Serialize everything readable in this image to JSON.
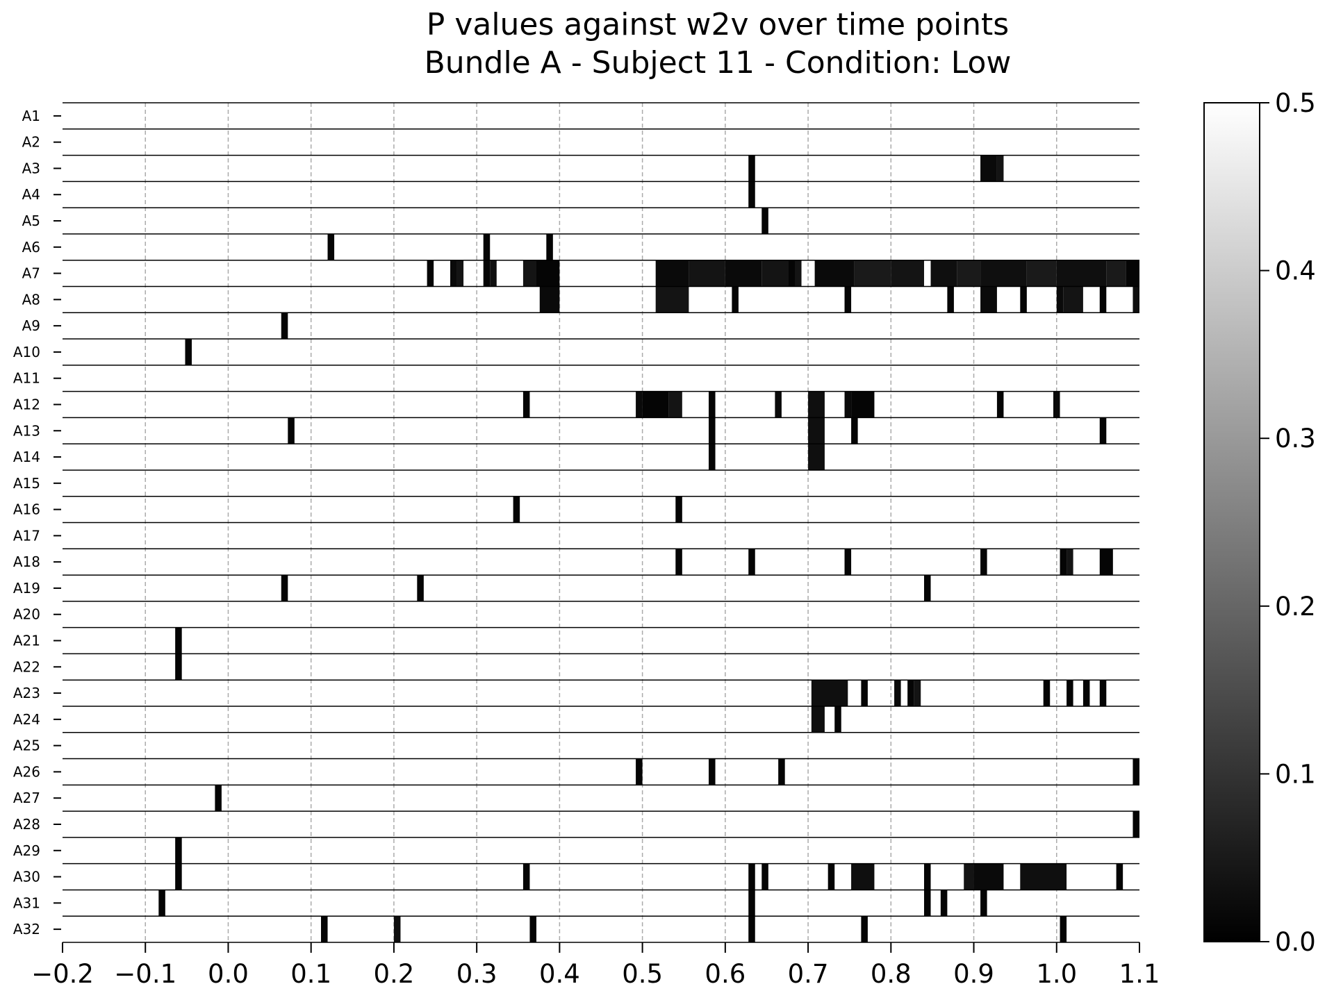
{
  "chart_data": {
    "type": "heatmap",
    "title": [
      "P values against w2v over time points",
      "Bundle A - Subject 11 - Condition: Low"
    ],
    "xlabel": "",
    "ylabel": "",
    "xlim": [
      -0.2,
      1.1
    ],
    "xticks": [
      -0.2,
      -0.1,
      0.0,
      0.1,
      0.2,
      0.3,
      0.4,
      0.5,
      0.6,
      0.7,
      0.8,
      0.9,
      1.0,
      1.1
    ],
    "xtick_labels": [
      "−0.2",
      "−0.1",
      "0.0",
      "0.1",
      "0.2",
      "0.3",
      "0.4",
      "0.5",
      "0.6",
      "0.7",
      "0.8",
      "0.9",
      "1.0",
      "1.1"
    ],
    "rows": [
      "A1",
      "A2",
      "A3",
      "A4",
      "A5",
      "A6",
      "A7",
      "A8",
      "A9",
      "A10",
      "A11",
      "A12",
      "A13",
      "A14",
      "A15",
      "A16",
      "A17",
      "A18",
      "A19",
      "A20",
      "A21",
      "A22",
      "A23",
      "A24",
      "A25",
      "A26",
      "A27",
      "A28",
      "A29",
      "A30",
      "A31",
      "A32"
    ],
    "colormap": "gray",
    "colorbar": {
      "min": 0.0,
      "max": 0.5,
      "ticks": [
        0.0,
        0.1,
        0.2,
        0.3,
        0.4,
        0.5
      ],
      "tick_labels": [
        "0.0",
        "0.1",
        "0.2",
        "0.3",
        "0.4",
        "0.5"
      ]
    },
    "grid": {
      "x": true,
      "style": "dashed",
      "color": "#aaaaaa"
    },
    "significant_segments": [
      {
        "row": "A3",
        "segments": [
          [
            0.628,
            0.636,
            0.01
          ],
          [
            0.908,
            0.928,
            0.02
          ],
          [
            0.928,
            0.936,
            0.04
          ]
        ]
      },
      {
        "row": "A4",
        "segments": [
          [
            0.628,
            0.636,
            0.01
          ]
        ]
      },
      {
        "row": "A5",
        "segments": [
          [
            0.644,
            0.652,
            0.01
          ]
        ]
      },
      {
        "row": "A6",
        "segments": [
          [
            0.12,
            0.128,
            0.01
          ],
          [
            0.308,
            0.316,
            0.01
          ],
          [
            0.384,
            0.392,
            0.01
          ]
        ]
      },
      {
        "row": "A7",
        "segments": [
          [
            0.24,
            0.248,
            0.01
          ],
          [
            0.268,
            0.276,
            0.02
          ],
          [
            0.276,
            0.284,
            0.04
          ],
          [
            0.308,
            0.316,
            0.01
          ],
          [
            0.316,
            0.324,
            0.03
          ],
          [
            0.356,
            0.372,
            0.04
          ],
          [
            0.372,
            0.4,
            0.01
          ],
          [
            0.516,
            0.556,
            0.02
          ],
          [
            0.556,
            0.6,
            0.04
          ],
          [
            0.6,
            0.644,
            0.02
          ],
          [
            0.644,
            0.676,
            0.04
          ],
          [
            0.676,
            0.684,
            0.01
          ],
          [
            0.684,
            0.692,
            0.04
          ],
          [
            0.708,
            0.756,
            0.02
          ],
          [
            0.756,
            0.8,
            0.05
          ],
          [
            0.8,
            0.84,
            0.04
          ],
          [
            0.848,
            0.88,
            0.03
          ],
          [
            0.88,
            0.908,
            0.05
          ],
          [
            0.908,
            0.964,
            0.03
          ],
          [
            0.964,
            1.0,
            0.05
          ],
          [
            1.0,
            1.06,
            0.03
          ],
          [
            1.06,
            1.084,
            0.05
          ],
          [
            1.084,
            1.1,
            0.01
          ]
        ]
      },
      {
        "row": "A8",
        "segments": [
          [
            0.376,
            0.4,
            0.02
          ],
          [
            0.516,
            0.556,
            0.04
          ],
          [
            0.608,
            0.616,
            0.01
          ],
          [
            0.744,
            0.752,
            0.01
          ],
          [
            0.868,
            0.876,
            0.01
          ],
          [
            0.908,
            0.928,
            0.02
          ],
          [
            0.956,
            0.964,
            0.01
          ],
          [
            1.0,
            1.008,
            0.02
          ],
          [
            1.008,
            1.032,
            0.04
          ],
          [
            1.052,
            1.06,
            0.01
          ],
          [
            1.092,
            1.1,
            0.03
          ]
        ]
      },
      {
        "row": "A9",
        "segments": [
          [
            0.064,
            0.072,
            0.01
          ]
        ]
      },
      {
        "row": "A10",
        "segments": [
          [
            -0.052,
            -0.044,
            0.01
          ]
        ]
      },
      {
        "row": "A12",
        "segments": [
          [
            0.356,
            0.364,
            0.01
          ],
          [
            0.492,
            0.5,
            0.02
          ],
          [
            0.5,
            0.532,
            0.01
          ],
          [
            0.532,
            0.548,
            0.04
          ],
          [
            0.58,
            0.588,
            0.01
          ],
          [
            0.66,
            0.668,
            0.02
          ],
          [
            0.7,
            0.72,
            0.03
          ],
          [
            0.744,
            0.752,
            0.02
          ],
          [
            0.752,
            0.78,
            0.01
          ],
          [
            0.928,
            0.936,
            0.01
          ],
          [
            0.996,
            1.004,
            0.02
          ]
        ]
      },
      {
        "row": "A13",
        "segments": [
          [
            0.072,
            0.08,
            0.01
          ],
          [
            0.58,
            0.588,
            0.01
          ],
          [
            0.7,
            0.72,
            0.03
          ],
          [
            0.752,
            0.76,
            0.01
          ],
          [
            1.052,
            1.06,
            0.01
          ]
        ]
      },
      {
        "row": "A14",
        "segments": [
          [
            0.58,
            0.588,
            0.01
          ],
          [
            0.7,
            0.72,
            0.03
          ]
        ]
      },
      {
        "row": "A16",
        "segments": [
          [
            0.344,
            0.352,
            0.01
          ],
          [
            0.54,
            0.548,
            0.01
          ]
        ]
      },
      {
        "row": "A18",
        "segments": [
          [
            0.54,
            0.548,
            0.01
          ],
          [
            0.628,
            0.636,
            0.01
          ],
          [
            0.744,
            0.752,
            0.01
          ],
          [
            0.908,
            0.916,
            0.01
          ],
          [
            1.004,
            1.012,
            0.01
          ],
          [
            1.012,
            1.02,
            0.04
          ],
          [
            1.052,
            1.068,
            0.01
          ]
        ]
      },
      {
        "row": "A19",
        "segments": [
          [
            0.064,
            0.072,
            0.01
          ],
          [
            0.228,
            0.236,
            0.01
          ],
          [
            0.84,
            0.848,
            0.01
          ]
        ]
      },
      {
        "row": "A21",
        "segments": [
          [
            -0.064,
            -0.056,
            0.01
          ]
        ]
      },
      {
        "row": "A22",
        "segments": [
          [
            -0.064,
            -0.056,
            0.01
          ]
        ]
      },
      {
        "row": "A23",
        "segments": [
          [
            0.704,
            0.748,
            0.03
          ],
          [
            0.764,
            0.772,
            0.01
          ],
          [
            0.804,
            0.812,
            0.02
          ],
          [
            0.82,
            0.828,
            0.01
          ],
          [
            0.828,
            0.836,
            0.04
          ],
          [
            0.984,
            0.992,
            0.01
          ],
          [
            1.012,
            1.02,
            0.01
          ],
          [
            1.032,
            1.04,
            0.01
          ],
          [
            1.052,
            1.06,
            0.01
          ]
        ]
      },
      {
        "row": "A24",
        "segments": [
          [
            0.704,
            0.72,
            0.03
          ],
          [
            0.732,
            0.74,
            0.01
          ]
        ]
      },
      {
        "row": "A26",
        "segments": [
          [
            0.492,
            0.5,
            0.01
          ],
          [
            0.58,
            0.588,
            0.01
          ],
          [
            0.664,
            0.672,
            0.01
          ],
          [
            1.092,
            1.1,
            0.01
          ]
        ]
      },
      {
        "row": "A27",
        "segments": [
          [
            -0.016,
            -0.008,
            0.01
          ]
        ]
      },
      {
        "row": "A28",
        "segments": [
          [
            1.092,
            1.1,
            0.01
          ]
        ]
      },
      {
        "row": "A29",
        "segments": [
          [
            -0.064,
            -0.056,
            0.01
          ]
        ]
      },
      {
        "row": "A30",
        "segments": [
          [
            -0.064,
            -0.056,
            0.01
          ],
          [
            0.356,
            0.364,
            0.01
          ],
          [
            0.628,
            0.636,
            0.01
          ],
          [
            0.644,
            0.652,
            0.01
          ],
          [
            0.724,
            0.732,
            0.01
          ],
          [
            0.752,
            0.78,
            0.03
          ],
          [
            0.84,
            0.848,
            0.01
          ],
          [
            0.888,
            0.9,
            0.04
          ],
          [
            0.9,
            0.936,
            0.02
          ],
          [
            0.956,
            1.012,
            0.03
          ],
          [
            1.072,
            1.08,
            0.01
          ]
        ]
      },
      {
        "row": "A31",
        "segments": [
          [
            -0.084,
            -0.076,
            0.01
          ],
          [
            0.628,
            0.636,
            0.01
          ],
          [
            0.84,
            0.848,
            0.01
          ],
          [
            0.86,
            0.868,
            0.01
          ],
          [
            0.908,
            0.916,
            0.01
          ]
        ]
      },
      {
        "row": "A32",
        "segments": [
          [
            0.112,
            0.12,
            0.01
          ],
          [
            0.2,
            0.208,
            0.03
          ],
          [
            0.364,
            0.372,
            0.01
          ],
          [
            0.628,
            0.636,
            0.01
          ],
          [
            0.764,
            0.772,
            0.01
          ],
          [
            1.004,
            1.012,
            0.01
          ]
        ]
      }
    ]
  }
}
